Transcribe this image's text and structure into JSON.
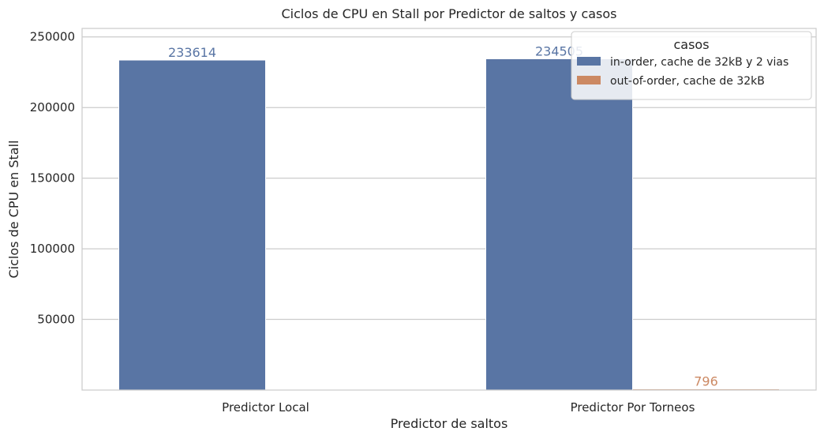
{
  "chart_data": {
    "type": "bar",
    "title": "Ciclos de CPU en Stall por Predictor de saltos y casos",
    "xlabel": "Predictor de saltos",
    "ylabel": "Ciclos de CPU en Stall",
    "categories": [
      "Predictor Local",
      "Predictor Por Torneos"
    ],
    "series": [
      {
        "name": "in-order, cache de 32kB y 2 vias",
        "color": "#5975a4",
        "values": [
          233614,
          234505
        ],
        "labels": [
          "233614",
          "234505"
        ]
      },
      {
        "name": "out-of-order, cache de 32kB",
        "color": "#cc8963",
        "values": [
          0,
          796
        ],
        "labels": [
          "",
          "796"
        ]
      }
    ],
    "ylim": [
      0,
      256000
    ],
    "yticks": [
      50000,
      100000,
      150000,
      200000,
      250000
    ],
    "ytick_labels": [
      "50000",
      "100000",
      "150000",
      "200000",
      "250000"
    ],
    "legend": {
      "title": "casos",
      "position": "top-right"
    },
    "grid": true
  }
}
